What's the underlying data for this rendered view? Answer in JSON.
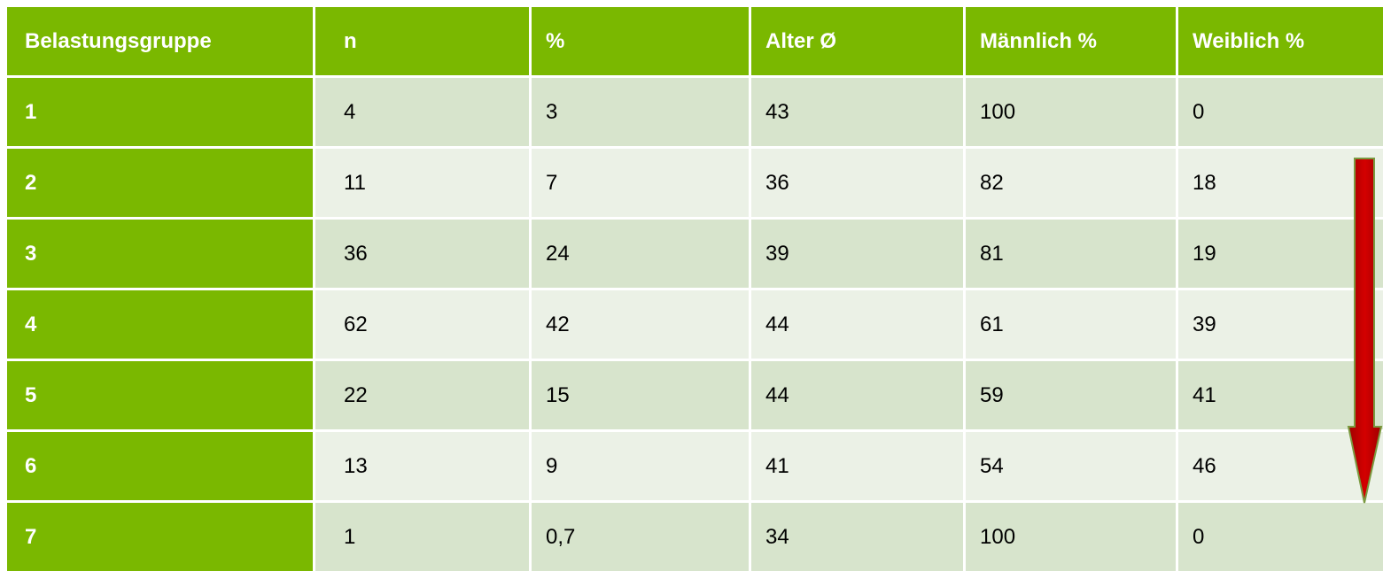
{
  "table": {
    "header": [
      "Belastungsgruppe",
      "n",
      "%",
      "Alter Ø",
      "Männlich %",
      "Weiblich %"
    ],
    "rows": [
      [
        "1",
        "4",
        "3",
        "43",
        "100",
        "0"
      ],
      [
        "2",
        "11",
        "7",
        "36",
        "82",
        "18"
      ],
      [
        "3",
        "36",
        "24",
        "39",
        "81",
        "19"
      ],
      [
        "4",
        "62",
        "42",
        "44",
        "61",
        "39"
      ],
      [
        "5",
        "22",
        "15",
        "44",
        "59",
        "41"
      ],
      [
        "6",
        "13",
        "9",
        "41",
        "54",
        "46"
      ],
      [
        "7",
        "1",
        "0,7",
        "34",
        "100",
        "0"
      ]
    ]
  }
}
